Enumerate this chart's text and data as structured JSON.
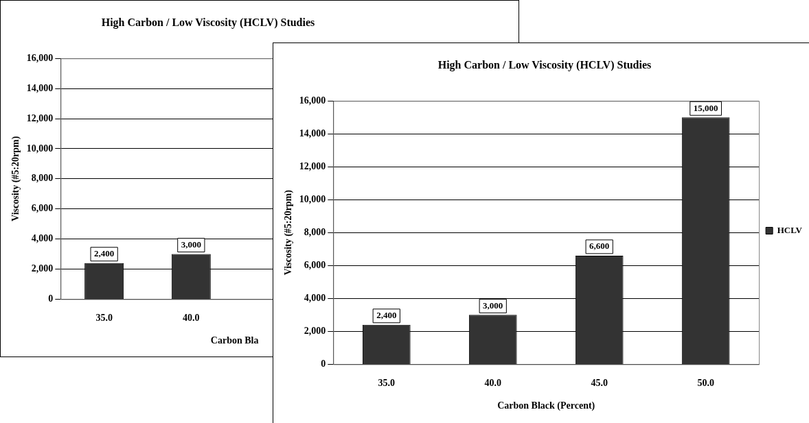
{
  "chart_data": [
    {
      "type": "bar",
      "title": "High Carbon / Low Viscosity (HCLV) Studies",
      "xlabel": "Carbon Bla",
      "ylabel": "Viscosity (#5:20rpm)",
      "categories": [
        "35.0",
        "40.0",
        null,
        null
      ],
      "series": [
        {
          "color": "#333333",
          "values": [
            2400,
            3000,
            null,
            null
          ]
        }
      ],
      "ylim": [
        0,
        16000
      ],
      "yticks": [
        {
          "value": 0,
          "label": "0"
        },
        {
          "value": 2000,
          "label": "2,000"
        },
        {
          "value": 4000,
          "label": "4,000"
        },
        {
          "value": 6000,
          "label": "6,000"
        },
        {
          "value": 8000,
          "label": "8,000"
        },
        {
          "value": 10000,
          "label": "10,000"
        },
        {
          "value": 12000,
          "label": "12,000"
        },
        {
          "value": 14000,
          "label": "14,000"
        },
        {
          "value": 16000,
          "label": "16,000"
        }
      ],
      "grid": "y",
      "legend": false,
      "value_labels": [
        "2,400",
        "3,000",
        null,
        null
      ]
    },
    {
      "type": "bar",
      "title": "High Carbon / Low Viscosity (HCLV) Studies",
      "xlabel": "Carbon Black (Percent)",
      "ylabel": "Viscosity (#5:20rpm)",
      "categories": [
        "35.0",
        "40.0",
        "45.0",
        "50.0"
      ],
      "series": [
        {
          "name": "HCLV",
          "color": "#333333",
          "values": [
            2400,
            3000,
            6600,
            15000
          ]
        }
      ],
      "ylim": [
        0,
        16000
      ],
      "yticks": [
        {
          "value": 0,
          "label": "0"
        },
        {
          "value": 2000,
          "label": "2,000"
        },
        {
          "value": 4000,
          "label": "4,000"
        },
        {
          "value": 6000,
          "label": "6,000"
        },
        {
          "value": 8000,
          "label": "8,000"
        },
        {
          "value": 10000,
          "label": "10,000"
        },
        {
          "value": 12000,
          "label": "12,000"
        },
        {
          "value": 14000,
          "label": "14,000"
        },
        {
          "value": 16000,
          "label": "16,000"
        }
      ],
      "grid": "y",
      "legend": "right",
      "value_labels": [
        "2,400",
        "3,000",
        "6,600",
        "15,000"
      ]
    }
  ]
}
